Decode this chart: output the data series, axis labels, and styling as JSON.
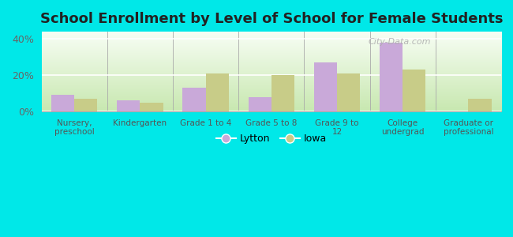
{
  "title": "School Enrollment by Level of School for Female Students",
  "categories": [
    "Nursery,\npreschool",
    "Kindergarten",
    "Grade 1 to 4",
    "Grade 5 to 8",
    "Grade 9 to\n12",
    "College\nundergrad",
    "Graduate or\nprofessional"
  ],
  "lytton": [
    9,
    6,
    13,
    8,
    27,
    38,
    0
  ],
  "iowa": [
    7,
    5,
    21,
    20,
    21,
    23,
    7
  ],
  "lytton_color": "#c9a9d9",
  "iowa_color": "#c8cc88",
  "background_outer": "#00e8e8",
  "yticks": [
    0,
    20,
    40
  ],
  "ylim": [
    0,
    44
  ],
  "legend_labels": [
    "Lytton",
    "Iowa"
  ],
  "title_fontsize": 13,
  "watermark": "City-Data.com",
  "bar_width": 0.35
}
